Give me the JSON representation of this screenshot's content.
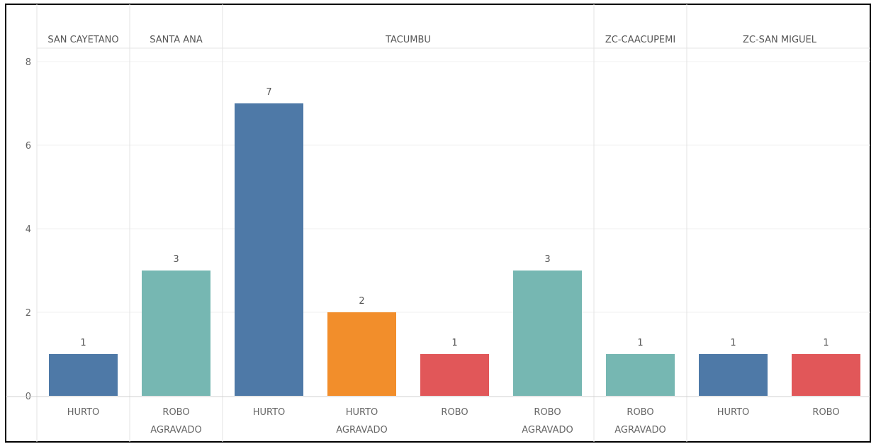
{
  "chart_data": {
    "type": "bar",
    "title": "",
    "xlabel": "",
    "ylabel": "",
    "ylim": [
      0,
      8
    ],
    "yticks": [
      0,
      2,
      4,
      6,
      8
    ],
    "grid": true,
    "groups": [
      {
        "name": "SAN CAYETANO",
        "bars": [
          {
            "category": "HURTO",
            "value": 1,
            "color": "#4e79a7"
          }
        ]
      },
      {
        "name": "SANTA ANA",
        "bars": [
          {
            "category": "ROBO AGRAVADO",
            "value": 3,
            "color": "#76b7b2"
          }
        ]
      },
      {
        "name": "TACUMBU",
        "bars": [
          {
            "category": "HURTO",
            "value": 7,
            "color": "#4e79a7"
          },
          {
            "category": "HURTO AGRAVADO",
            "value": 2,
            "color": "#f28e2b"
          },
          {
            "category": "ROBO",
            "value": 1,
            "color": "#e15759"
          },
          {
            "category": "ROBO AGRAVADO",
            "value": 3,
            "color": "#76b7b2"
          }
        ]
      },
      {
        "name": "ZC-CAACUPEMI",
        "bars": [
          {
            "category": "ROBO AGRAVADO",
            "value": 1,
            "color": "#76b7b2"
          }
        ]
      },
      {
        "name": "ZC-SAN MIGUEL",
        "bars": [
          {
            "category": "HURTO",
            "value": 1,
            "color": "#4e79a7"
          },
          {
            "category": "ROBO",
            "value": 1,
            "color": "#e15759"
          }
        ]
      }
    ]
  }
}
